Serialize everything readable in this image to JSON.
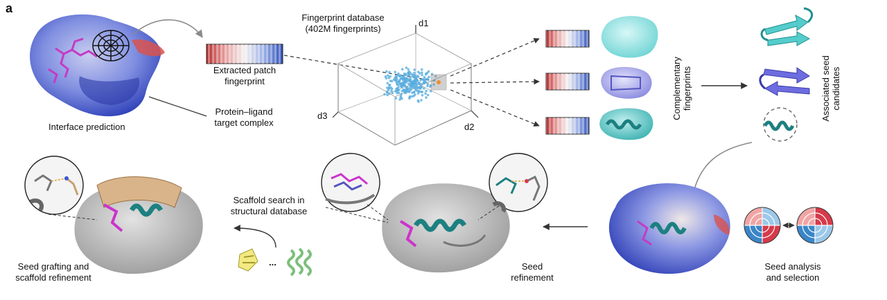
{
  "panel_label": "a",
  "labels": {
    "interface_prediction": "Interface prediction",
    "extracted_patch": [
      "Extracted patch",
      "fingerprint"
    ],
    "protein_ligand": [
      "Protein–ligand",
      "target complex"
    ],
    "database": [
      "Fingerprint database",
      "(402M fingerprints)"
    ],
    "axis_d1": "d1",
    "axis_d2": "d2",
    "axis_d3": "d3",
    "complementary": [
      "Complementary",
      "fingerprints"
    ],
    "seed_candidates": [
      "Associated seed",
      "candidates"
    ],
    "seed_analysis": [
      "Seed analysis",
      "and selection"
    ],
    "seed_refinement": [
      "Seed",
      "refinement"
    ],
    "scaffold_search": [
      "Scaffold search in",
      "structural database"
    ],
    "seed_grafting": [
      "Seed grafting and",
      "scaffold refinement"
    ],
    "ellipsis": "..."
  },
  "colors": {
    "surface_blue": "#5a6fd6",
    "surface_red": "#d9534f",
    "cyan": "#7fdede",
    "teal": "#1d8a8a",
    "violet": "#7b7bd9",
    "magenta": "#cc33cc",
    "tan": "#d9b48a",
    "grey": "#9a9a9a",
    "points": "#5aaee0",
    "arrow": "#333333"
  }
}
